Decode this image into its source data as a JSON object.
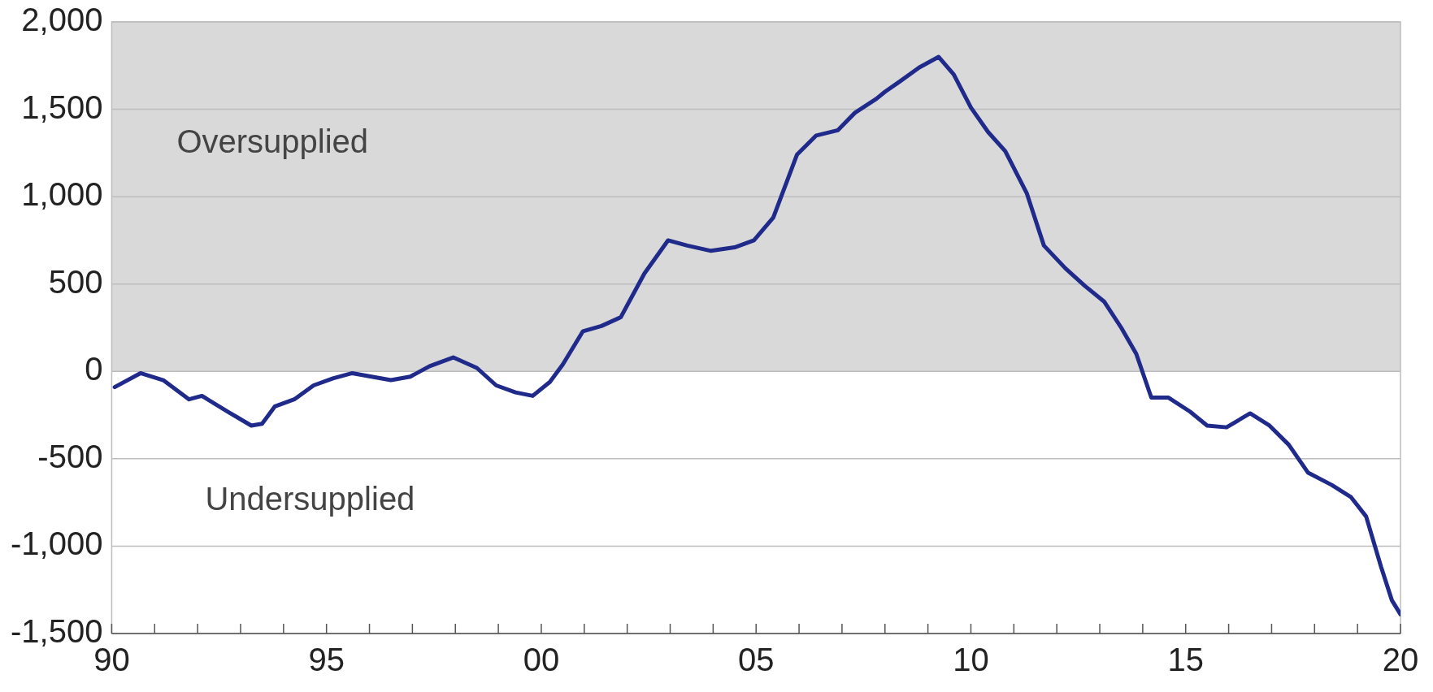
{
  "chart_data": {
    "type": "line",
    "x": [
      1990.07,
      1990.67,
      1991.2,
      1991.8,
      1992.1,
      1992.7,
      1993.25,
      1993.5,
      1993.8,
      1994.25,
      1994.7,
      1995.15,
      1995.6,
      1996.05,
      1996.5,
      1996.95,
      1997.4,
      1997.95,
      1998.5,
      1998.95,
      1999.4,
      1999.8,
      2000.2,
      2000.5,
      2000.97,
      2001.4,
      2001.85,
      2002.4,
      2002.95,
      2003.4,
      2003.95,
      2004.5,
      2004.95,
      2005.4,
      2005.95,
      2006.4,
      2006.9,
      2007.3,
      2007.8,
      2008.0,
      2008.35,
      2008.8,
      2009.25,
      2009.6,
      2010.0,
      2010.4,
      2010.8,
      2011.3,
      2011.7,
      2012.2,
      2012.65,
      2013.1,
      2013.5,
      2013.85,
      2014.2,
      2014.6,
      2015.1,
      2015.5,
      2015.95,
      2016.5,
      2016.95,
      2017.4,
      2017.85,
      2018.4,
      2018.85,
      2019.2,
      2019.55,
      2019.8,
      2020.0
    ],
    "series": [
      {
        "color": "#1f2a8a",
        "values": [
          -90,
          -10,
          -50,
          -160,
          -140,
          -230,
          -310,
          -300,
          -200,
          -160,
          -80,
          -40,
          -10,
          -30,
          -50,
          -30,
          30,
          80,
          20,
          -80,
          -120,
          -140,
          -60,
          40,
          230,
          260,
          310,
          560,
          750,
          720,
          690,
          710,
          750,
          880,
          1240,
          1350,
          1380,
          1480,
          1560,
          1600,
          1660,
          1740,
          1800,
          1700,
          1510,
          1370,
          1260,
          1020,
          720,
          590,
          490,
          400,
          250,
          100,
          -150,
          -150,
          -230,
          -310,
          -320,
          -240,
          -310,
          -420,
          -580,
          -650,
          -720,
          -830,
          -1120,
          -1310,
          -1390
        ]
      }
    ],
    "xlim": [
      1990,
      2020
    ],
    "xticks": [
      {
        "value": 1990,
        "label": "90"
      },
      {
        "value": 1991,
        "label": null
      },
      {
        "value": 1992,
        "label": null
      },
      {
        "value": 1993,
        "label": null
      },
      {
        "value": 1994,
        "label": null
      },
      {
        "value": 1995,
        "label": "95"
      },
      {
        "value": 1996,
        "label": null
      },
      {
        "value": 1997,
        "label": null
      },
      {
        "value": 1998,
        "label": null
      },
      {
        "value": 1999,
        "label": null
      },
      {
        "value": 2000,
        "label": "00"
      },
      {
        "value": 2001,
        "label": null
      },
      {
        "value": 2002,
        "label": null
      },
      {
        "value": 2003,
        "label": null
      },
      {
        "value": 2004,
        "label": null
      },
      {
        "value": 2005,
        "label": "05"
      },
      {
        "value": 2006,
        "label": null
      },
      {
        "value": 2007,
        "label": null
      },
      {
        "value": 2008,
        "label": null
      },
      {
        "value": 2009,
        "label": null
      },
      {
        "value": 2010,
        "label": "10"
      },
      {
        "value": 2011,
        "label": null
      },
      {
        "value": 2012,
        "label": null
      },
      {
        "value": 2013,
        "label": null
      },
      {
        "value": 2014,
        "label": null
      },
      {
        "value": 2015,
        "label": "15"
      },
      {
        "value": 2016,
        "label": null
      },
      {
        "value": 2017,
        "label": null
      },
      {
        "value": 2018,
        "label": null
      },
      {
        "value": 2019,
        "label": null
      },
      {
        "value": 2020,
        "label": "20"
      }
    ],
    "ylim": [
      -1500,
      2000
    ],
    "yticks": [
      {
        "value": -1500,
        "label": "-1,500"
      },
      {
        "value": -1000,
        "label": "-1,000"
      },
      {
        "value": -500,
        "label": "-500"
      },
      0,
      {
        "value": 500,
        "label": "500"
      },
      {
        "value": 1000,
        "label": "1,000"
      },
      {
        "value": 1500,
        "label": "1,500"
      },
      {
        "value": 2000,
        "label": "2,000"
      }
    ],
    "bands": [
      {
        "axis": "y",
        "from": 0,
        "to": 2000,
        "label": "Oversupplied",
        "color": "#d9d9d9"
      }
    ],
    "annotations": [
      "Undersupplied"
    ],
    "grid": "y",
    "legend": false,
    "marker": "none",
    "line_style": "solid"
  }
}
